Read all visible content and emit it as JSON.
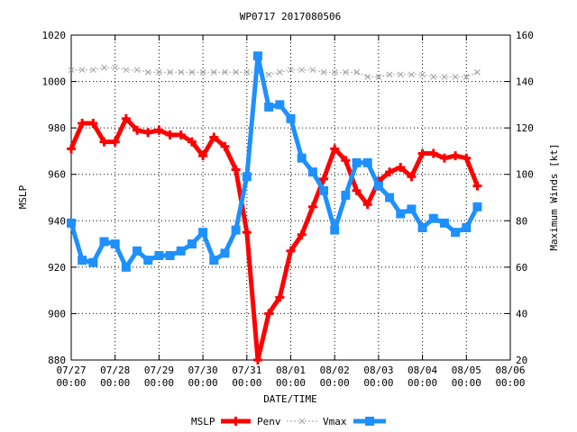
{
  "chart_data": {
    "type": "line",
    "title": "WP0717 2017080506",
    "xlabel": "DATE/TIME",
    "ylabel_left": "MSLP",
    "ylabel_right": "Maximum Winds [kt]",
    "ylim_left": [
      880,
      1020
    ],
    "ylim_right": [
      20,
      160
    ],
    "yticks_left": [
      880,
      900,
      920,
      940,
      960,
      980,
      1000,
      1020
    ],
    "yticks_right": [
      20,
      40,
      60,
      80,
      100,
      120,
      140,
      160
    ],
    "xlim": [
      0,
      10
    ],
    "xticks": [
      {
        "date": "07/27",
        "time": "00:00"
      },
      {
        "date": "07/28",
        "time": "00:00"
      },
      {
        "date": "07/29",
        "time": "00:00"
      },
      {
        "date": "07/30",
        "time": "00:00"
      },
      {
        "date": "07/31",
        "time": "00:00"
      },
      {
        "date": "08/01",
        "time": "00:00"
      },
      {
        "date": "08/02",
        "time": "00:00"
      },
      {
        "date": "08/03",
        "time": "00:00"
      },
      {
        "date": "08/04",
        "time": "00:00"
      },
      {
        "date": "08/05",
        "time": "00:00"
      },
      {
        "date": "08/06",
        "time": "00:00"
      }
    ],
    "grid": true,
    "legend_position": "bottom",
    "legend": [
      "MSLP",
      "Penv",
      "Vmax"
    ],
    "colors": {
      "mslp": "#ff0000",
      "penv": "#a0a0a0",
      "vmax": "#1e90ff"
    },
    "series": [
      {
        "name": "MSLP",
        "axis": "left",
        "x": [
          0,
          0.25,
          0.5,
          0.75,
          1,
          1.25,
          1.5,
          1.75,
          2,
          2.25,
          2.5,
          2.75,
          3,
          3.25,
          3.5,
          3.75,
          4,
          4.25,
          4.5,
          4.75,
          5,
          5.25,
          5.5,
          5.75,
          6,
          6.25,
          6.5,
          6.75,
          7,
          7.25,
          7.5,
          7.75,
          8,
          8.25,
          8.5,
          8.75,
          9,
          9.25
        ],
        "values": [
          971,
          982,
          982,
          974,
          974,
          984,
          979,
          978,
          979,
          977,
          977,
          974,
          968,
          976,
          972,
          962,
          935,
          880,
          900,
          907,
          927,
          934,
          946,
          958,
          971,
          966,
          953,
          947,
          957,
          961,
          963,
          959,
          969,
          969,
          967,
          968,
          967,
          955
        ]
      },
      {
        "name": "Penv",
        "axis": "left",
        "x": [
          0,
          0.25,
          0.5,
          0.75,
          1,
          1.25,
          1.5,
          1.75,
          2,
          2.25,
          2.5,
          2.75,
          3,
          3.25,
          3.5,
          3.75,
          4,
          4.25,
          4.5,
          4.75,
          5,
          5.25,
          5.5,
          5.75,
          6,
          6.25,
          6.5,
          6.75,
          7,
          7.25,
          7.5,
          7.75,
          8,
          8.25,
          8.5,
          8.75,
          9,
          9.25
        ],
        "values": [
          1005,
          1005,
          1005,
          1006,
          1006,
          1005,
          1005,
          1004,
          1004,
          1004,
          1004,
          1004,
          1004,
          1004,
          1004,
          1004,
          1004,
          1004,
          1003,
          1004,
          1005,
          1005,
          1005,
          1004,
          1004,
          1004,
          1004,
          1002,
          1002,
          1003,
          1003,
          1003,
          1003,
          1002,
          1002,
          1002,
          1002,
          1004
        ]
      },
      {
        "name": "Vmax",
        "axis": "right",
        "x": [
          0,
          0.25,
          0.5,
          0.75,
          1,
          1.25,
          1.5,
          1.75,
          2,
          2.25,
          2.5,
          2.75,
          3,
          3.25,
          3.5,
          3.75,
          4,
          4.25,
          4.5,
          4.75,
          5,
          5.25,
          5.5,
          5.75,
          6,
          6.25,
          6.5,
          6.75,
          7,
          7.25,
          7.5,
          7.75,
          8,
          8.25,
          8.5,
          8.75,
          9,
          9.25
        ],
        "values": [
          79,
          63,
          62,
          71,
          70,
          60,
          67,
          63,
          65,
          65,
          67,
          70,
          75,
          63,
          66,
          76,
          99,
          151,
          129,
          130,
          124,
          107,
          101,
          93,
          76,
          91,
          105,
          105,
          95,
          90,
          83,
          85,
          77,
          81,
          79,
          75,
          77,
          86
        ]
      }
    ]
  }
}
